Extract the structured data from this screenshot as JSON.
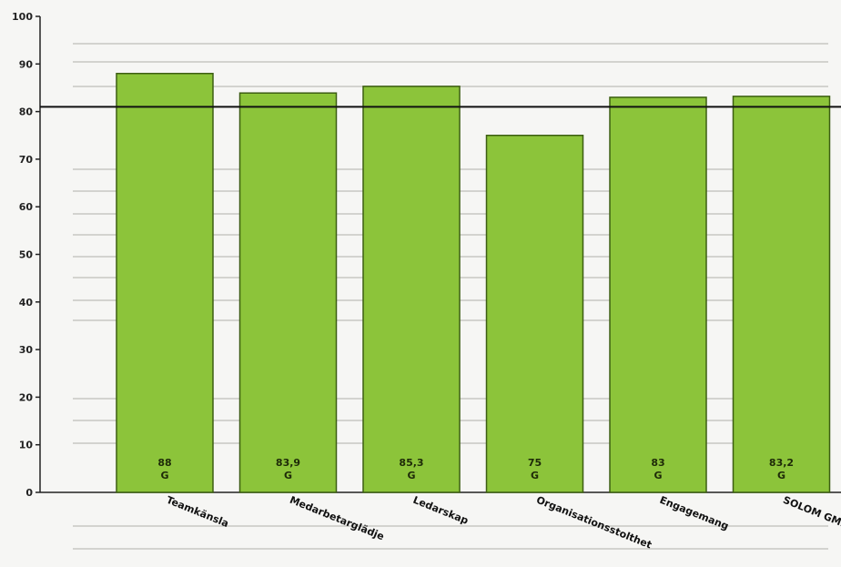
{
  "chart_data": {
    "type": "bar",
    "categories": [
      "Teamkänsla",
      "Medarbetarglädje",
      "Ledarskap",
      "Organisationsstolthet",
      "Engagemang",
      "SOLOM GMI"
    ],
    "values": [
      88,
      83.9,
      85.3,
      75,
      83,
      83.2
    ],
    "value_labels": [
      "88",
      "83,9",
      "85,3",
      "75",
      "83",
      "83,2"
    ],
    "grade_labels": [
      "G",
      "G",
      "G",
      "G",
      "G",
      "G"
    ],
    "reference_line": 81,
    "ylim": [
      0,
      100
    ],
    "yticks": [
      "0",
      "10",
      "20",
      "30",
      "40",
      "50",
      "60",
      "70",
      "80",
      "90",
      "100"
    ],
    "title": "",
    "xlabel": "",
    "ylabel": "",
    "grid": false,
    "colors": {
      "bar_fill": "#8cc43a",
      "bar_stroke": "#3c5e12",
      "reference_line": "#111111",
      "axis": "#222222"
    }
  }
}
